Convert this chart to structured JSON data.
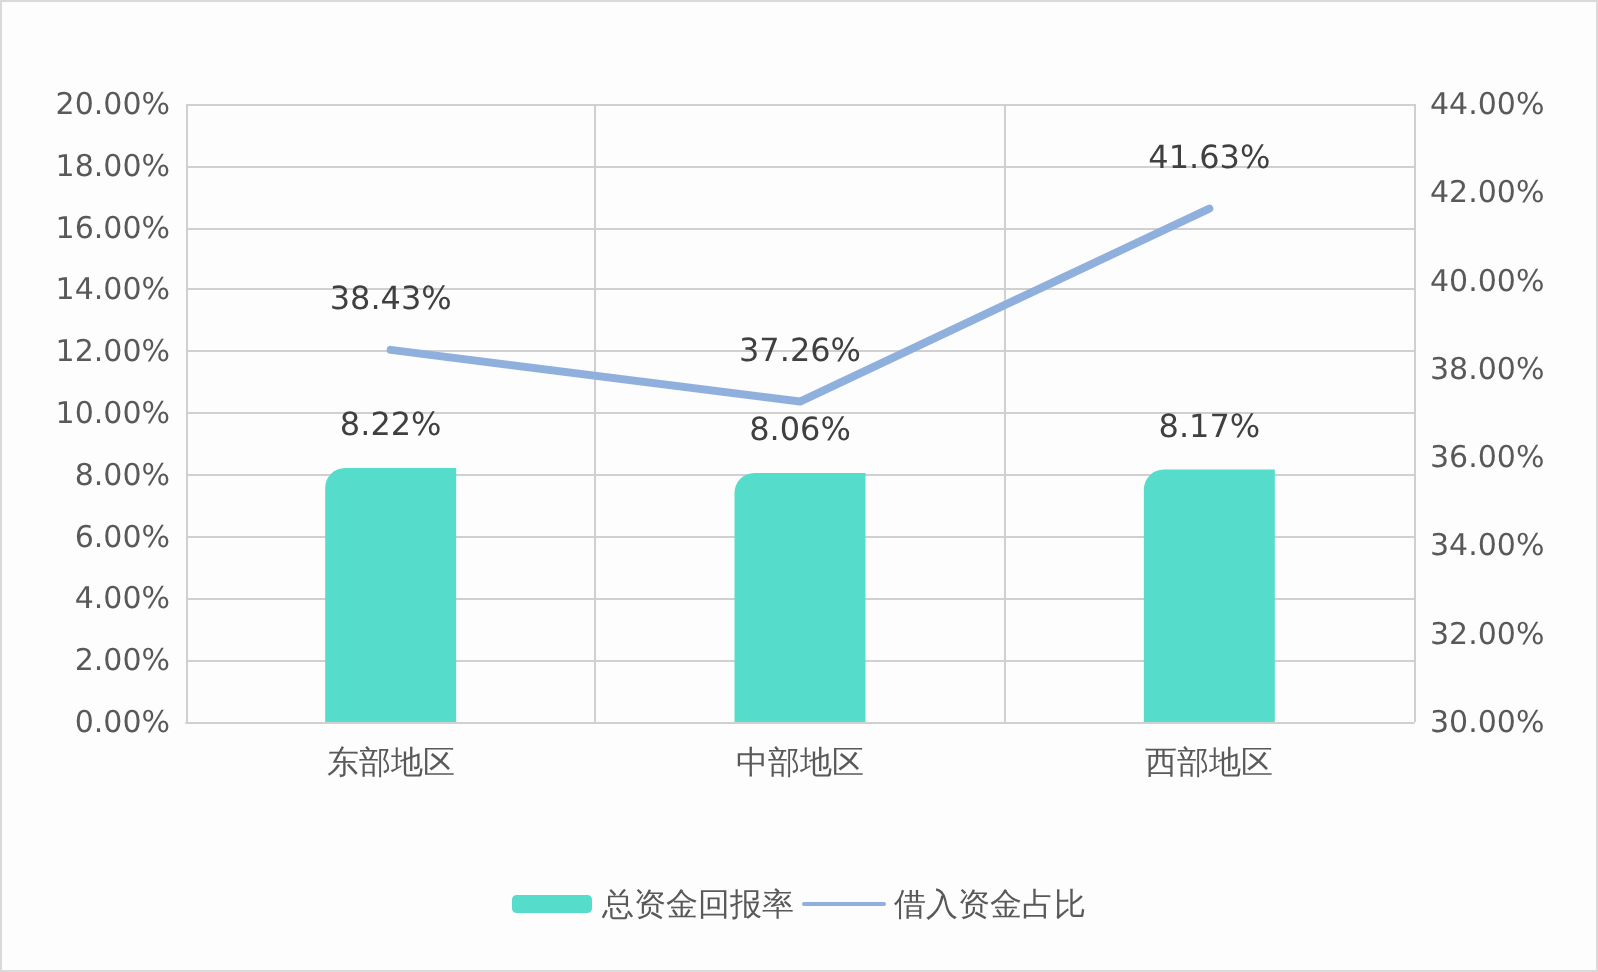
{
  "chart_data": {
    "type": "bar",
    "categories": [
      "东部地区",
      "中部地区",
      "西部地区"
    ],
    "series": [
      {
        "name": "总资金回报率",
        "color": "#55dccb",
        "values": [
          8.22,
          8.06,
          8.17
        ],
        "value_labels": [
          "8.22%",
          "8.06%",
          "8.17%"
        ]
      },
      {
        "name": "借入资金占比",
        "type": "line",
        "axis": "y2",
        "color": "#8fb0dd",
        "values": [
          38.43,
          37.26,
          41.63
        ],
        "value_labels": [
          "38.43%",
          "37.26%",
          "41.63%"
        ]
      }
    ],
    "ylim": [
      0,
      20
    ],
    "yticks": [
      {
        "value": 0,
        "label": "0.00%"
      },
      {
        "value": 2,
        "label": "2.00%"
      },
      {
        "value": 4,
        "label": "4.00%"
      },
      {
        "value": 6,
        "label": "6.00%"
      },
      {
        "value": 8,
        "label": "8.00%"
      },
      {
        "value": 10,
        "label": "10.00%"
      },
      {
        "value": 12,
        "label": "12.00%"
      },
      {
        "value": 14,
        "label": "14.00%"
      },
      {
        "value": 16,
        "label": "16.00%"
      },
      {
        "value": 18,
        "label": "18.00%"
      },
      {
        "value": 20,
        "label": "20.00%"
      }
    ],
    "y2lim": [
      30,
      44
    ],
    "y2ticks": [
      {
        "value": 30,
        "label": "30.00%"
      },
      {
        "value": 32,
        "label": "32.00%"
      },
      {
        "value": 34,
        "label": "34.00%"
      },
      {
        "value": 36,
        "label": "36.00%"
      },
      {
        "value": 38,
        "label": "38.00%"
      },
      {
        "value": 40,
        "label": "40.00%"
      },
      {
        "value": 42,
        "label": "42.00%"
      },
      {
        "value": 44,
        "label": "44.00%"
      }
    ],
    "grid": true,
    "legend": "bottom",
    "marker": "none",
    "line_style": "solid"
  }
}
